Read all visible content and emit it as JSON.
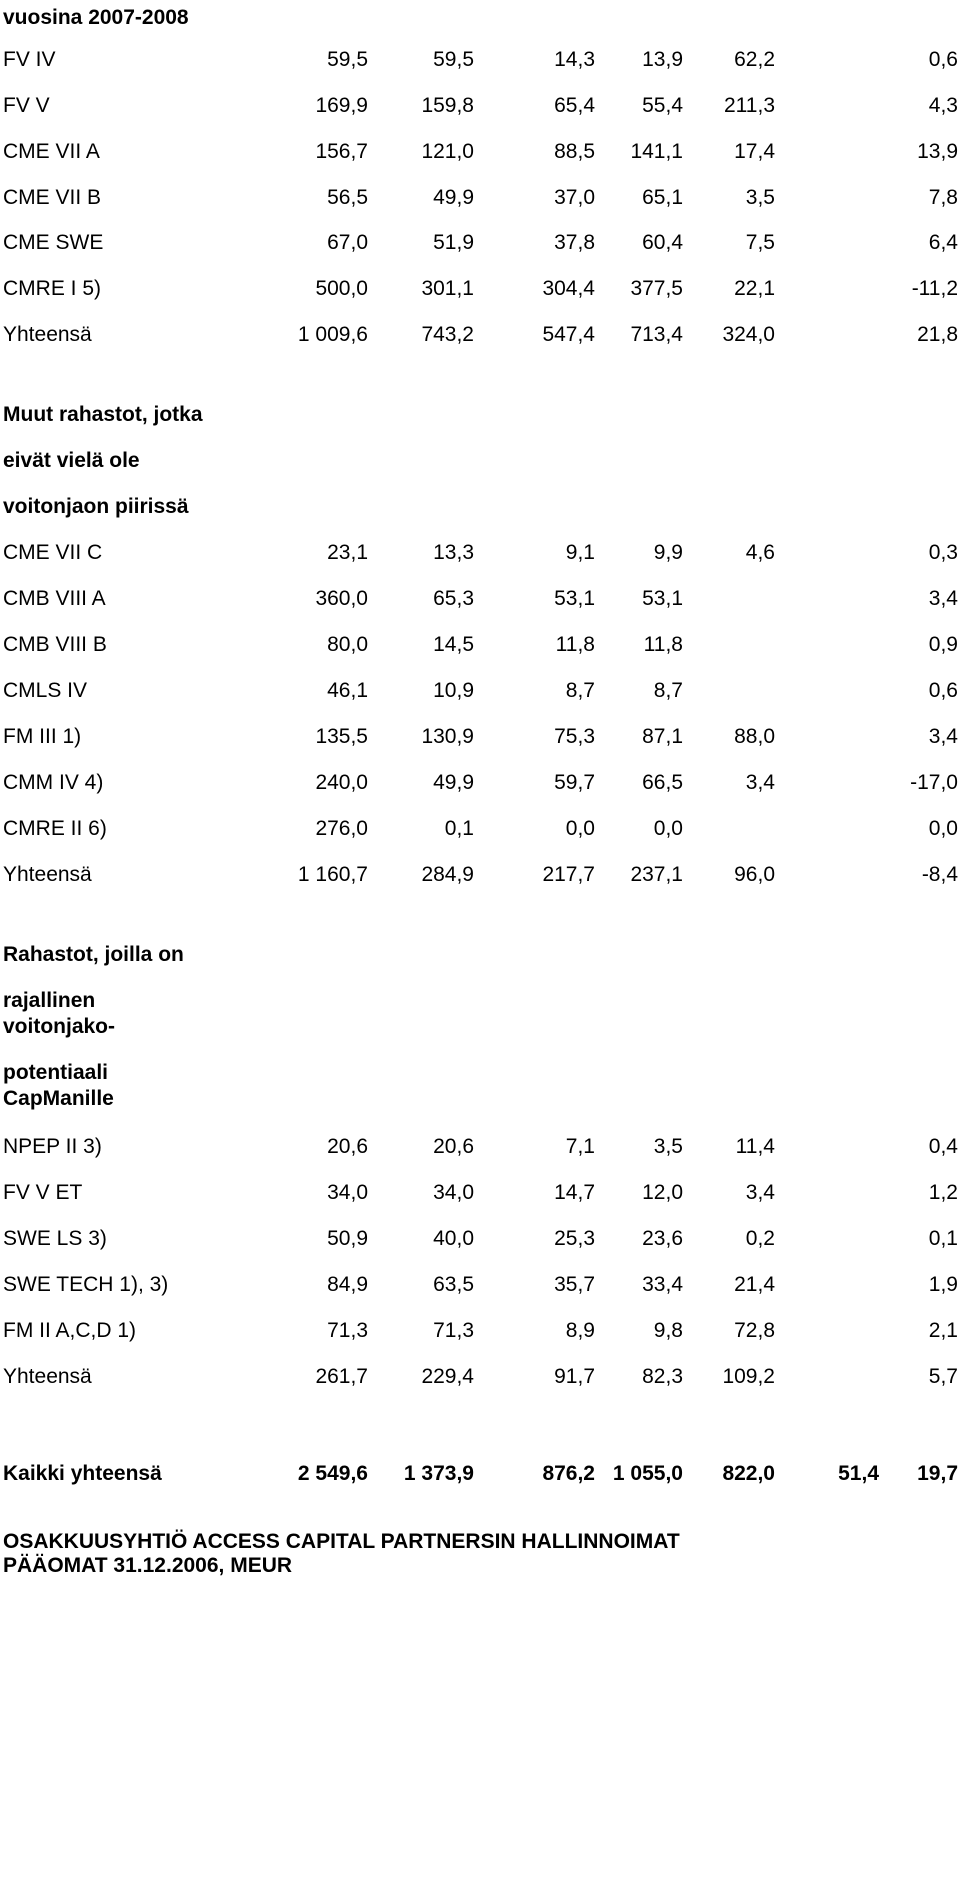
{
  "doc_section_header": "vuosina 2007-2008",
  "section1": {
    "rows": [
      {
        "label": "FV IV",
        "values": [
          "59,5",
          "59,5",
          "14,3",
          "13,9",
          "62,2",
          "0,6"
        ]
      },
      {
        "label": "FV V",
        "values": [
          "169,9",
          "159,8",
          "65,4",
          "55,4",
          "211,3",
          "4,3"
        ]
      },
      {
        "label": "CME VII A",
        "values": [
          "156,7",
          "121,0",
          "88,5",
          "141,1",
          "17,4",
          "13,9"
        ]
      },
      {
        "label": "CME VII B",
        "values": [
          "56,5",
          "49,9",
          "37,0",
          "65,1",
          "3,5",
          "7,8"
        ]
      },
      {
        "label": "CME SWE",
        "values": [
          "67,0",
          "51,9",
          "37,8",
          "60,4",
          "7,5",
          "6,4"
        ]
      },
      {
        "label": "CMRE I 5)",
        "values": [
          "500,0",
          "301,1",
          "304,4",
          "377,5",
          "22,1",
          "-11,2"
        ]
      },
      {
        "label": "Yhteensä",
        "values": [
          "1 009,6",
          "743,2",
          "547,4",
          "713,4",
          "324,0",
          "21,8"
        ]
      }
    ]
  },
  "section2": {
    "heading_lines": [
      "Muut rahastot, jotka",
      "eivät vielä ole",
      "voitonjaon piirissä"
    ],
    "rows": [
      {
        "label": "CME VII C",
        "values": [
          "23,1",
          "13,3",
          "9,1",
          "9,9",
          "4,6",
          "0,3"
        ]
      },
      {
        "label": "CMB VIII A",
        "values": [
          "360,0",
          "65,3",
          "53,1",
          "53,1",
          "",
          "3,4"
        ]
      },
      {
        "label": "CMB VIII B",
        "values": [
          "80,0",
          "14,5",
          "11,8",
          "11,8",
          "",
          "0,9"
        ]
      },
      {
        "label": "CMLS IV",
        "values": [
          "46,1",
          "10,9",
          "8,7",
          "8,7",
          "",
          "0,6"
        ]
      },
      {
        "label": "FM III 1)",
        "values": [
          "135,5",
          "130,9",
          "75,3",
          "87,1",
          "88,0",
          "3,4"
        ]
      },
      {
        "label": "CMM IV 4)",
        "values": [
          "240,0",
          "49,9",
          "59,7",
          "66,5",
          "3,4",
          "-17,0"
        ]
      },
      {
        "label": "CMRE II 6)",
        "values": [
          "276,0",
          "0,1",
          "0,0",
          "0,0",
          "",
          "0,0"
        ]
      },
      {
        "label": "Yhteensä",
        "values": [
          "1 160,7",
          "284,9",
          "217,7",
          "237,1",
          "96,0",
          "-8,4"
        ]
      }
    ]
  },
  "section3": {
    "heading_lines": [
      "Rahastot, joilla on",
      "rajallinen",
      "voitonjako-",
      "potentiaali",
      "CapManille"
    ],
    "rows": [
      {
        "label": "NPEP II 3)",
        "values": [
          "20,6",
          "20,6",
          "7,1",
          "3,5",
          "11,4",
          "0,4"
        ]
      },
      {
        "label": "FV V ET",
        "values": [
          "34,0",
          "34,0",
          "14,7",
          "12,0",
          "3,4",
          "1,2"
        ]
      },
      {
        "label": "SWE LS 3)",
        "values": [
          "50,9",
          "40,0",
          "25,3",
          "23,6",
          "0,2",
          "0,1"
        ]
      },
      {
        "label": "SWE TECH 1), 3)",
        "values": [
          "84,9",
          "63,5",
          "35,7",
          "33,4",
          "21,4",
          "1,9"
        ]
      },
      {
        "label": "FM II A,C,D 1)",
        "values": [
          "71,3",
          "71,3",
          "8,9",
          "9,8",
          "72,8",
          "2,1"
        ]
      },
      {
        "label": "Yhteensä",
        "values": [
          "261,7",
          "229,4",
          "91,7",
          "82,3",
          "109,2",
          "5,7"
        ]
      }
    ]
  },
  "grand_total": {
    "label": "Kaikki yhteensä",
    "values": [
      "2 549,6",
      "1 373,9",
      "876,2",
      "1 055,0",
      "822,0",
      "51,4",
      "19,7"
    ]
  },
  "footer_lines": [
    "OSAKKUUSYHTIÖ ACCESS CAPITAL PARTNERSIN HALLINNOIMAT",
    "PÄÄOMAT 31.12.2006, MEUR"
  ]
}
